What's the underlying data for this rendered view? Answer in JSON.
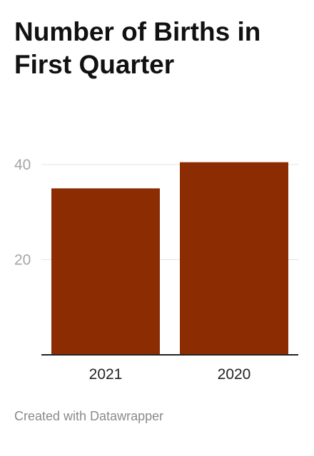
{
  "chart_data": {
    "type": "bar",
    "title": "Number of Births in First Quarter",
    "categories": [
      "2021",
      "2020"
    ],
    "values": [
      35,
      40.5
    ],
    "ylim": [
      0,
      40
    ],
    "yticks": [
      20,
      40
    ],
    "grid": true,
    "legend": "none",
    "bar_color": "#8b2c02"
  },
  "footer": {
    "credit": "Created with Datawrapper"
  }
}
